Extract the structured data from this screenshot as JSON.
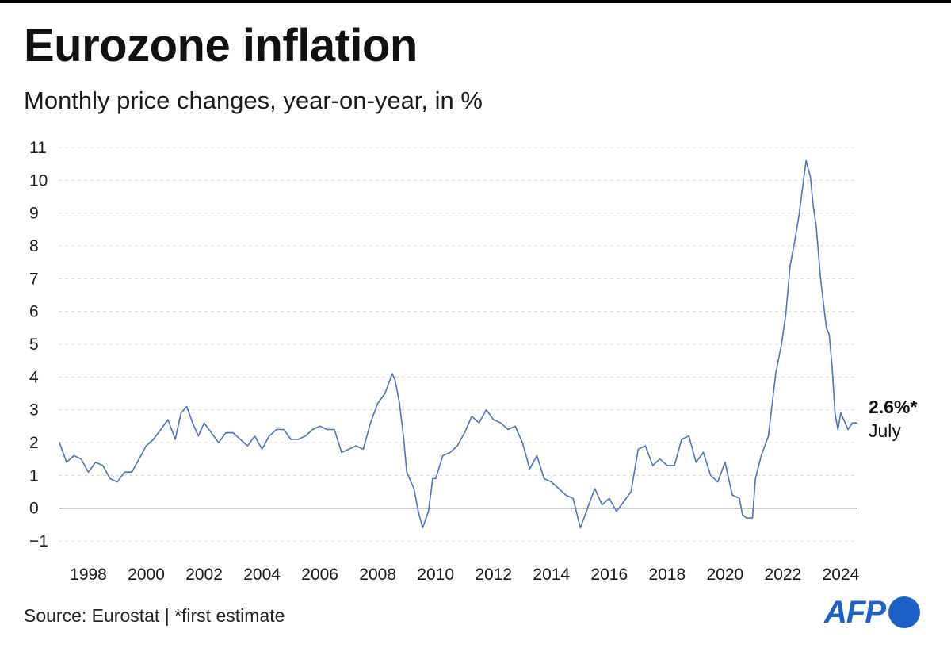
{
  "chart_data": {
    "type": "line",
    "title": "Eurozone inflation",
    "subtitle": "Monthly price changes, year-on-year, in %",
    "xlabel": "",
    "ylabel": "",
    "ylim": [
      -1,
      11
    ],
    "xlim": [
      1997.0,
      2024.55
    ],
    "yticks": [
      -1,
      0,
      1,
      2,
      3,
      4,
      5,
      6,
      7,
      8,
      9,
      10,
      11
    ],
    "ytick_labels": [
      "−1",
      "0",
      "1",
      "2",
      "3",
      "4",
      "5",
      "6",
      "7",
      "8",
      "9",
      "10",
      "11"
    ],
    "xticks": [
      1998,
      2000,
      2002,
      2004,
      2006,
      2008,
      2010,
      2012,
      2014,
      2016,
      2018,
      2020,
      2022,
      2024
    ],
    "xtick_labels": [
      "1998",
      "2000",
      "2002",
      "2004",
      "2006",
      "2008",
      "2010",
      "2012",
      "2014",
      "2016",
      "2018",
      "2020",
      "2022",
      "2024"
    ],
    "grid": "horizontal dashed",
    "line_color": "#4a72c8",
    "series": [
      {
        "points": [
          [
            1997.0,
            2.0
          ],
          [
            1997.25,
            1.4
          ],
          [
            1997.5,
            1.6
          ],
          [
            1997.75,
            1.5
          ],
          [
            1998.0,
            1.1
          ],
          [
            1998.25,
            1.4
          ],
          [
            1998.5,
            1.3
          ],
          [
            1998.75,
            0.9
          ],
          [
            1999.0,
            0.8
          ],
          [
            1999.25,
            1.1
          ],
          [
            1999.5,
            1.1
          ],
          [
            1999.75,
            1.5
          ],
          [
            2000.0,
            1.9
          ],
          [
            2000.25,
            2.1
          ],
          [
            2000.5,
            2.4
          ],
          [
            2000.75,
            2.7
          ],
          [
            2001.0,
            2.1
          ],
          [
            2001.2,
            2.9
          ],
          [
            2001.4,
            3.1
          ],
          [
            2001.6,
            2.6
          ],
          [
            2001.8,
            2.2
          ],
          [
            2002.0,
            2.6
          ],
          [
            2002.25,
            2.3
          ],
          [
            2002.5,
            2.0
          ],
          [
            2002.75,
            2.3
          ],
          [
            2003.0,
            2.3
          ],
          [
            2003.25,
            2.1
          ],
          [
            2003.5,
            1.9
          ],
          [
            2003.75,
            2.2
          ],
          [
            2004.0,
            1.8
          ],
          [
            2004.25,
            2.2
          ],
          [
            2004.5,
            2.4
          ],
          [
            2004.75,
            2.4
          ],
          [
            2005.0,
            2.1
          ],
          [
            2005.25,
            2.1
          ],
          [
            2005.5,
            2.2
          ],
          [
            2005.75,
            2.4
          ],
          [
            2006.0,
            2.5
          ],
          [
            2006.25,
            2.4
          ],
          [
            2006.5,
            2.4
          ],
          [
            2006.75,
            1.7
          ],
          [
            2007.0,
            1.8
          ],
          [
            2007.25,
            1.9
          ],
          [
            2007.5,
            1.8
          ],
          [
            2007.75,
            2.6
          ],
          [
            2008.0,
            3.2
          ],
          [
            2008.25,
            3.5
          ],
          [
            2008.5,
            4.1
          ],
          [
            2008.6,
            3.9
          ],
          [
            2008.75,
            3.2
          ],
          [
            2008.9,
            2.1
          ],
          [
            2009.0,
            1.1
          ],
          [
            2009.25,
            0.6
          ],
          [
            2009.4,
            -0.1
          ],
          [
            2009.55,
            -0.6
          ],
          [
            2009.75,
            -0.1
          ],
          [
            2009.9,
            0.9
          ],
          [
            2010.0,
            0.9
          ],
          [
            2010.25,
            1.6
          ],
          [
            2010.5,
            1.7
          ],
          [
            2010.75,
            1.9
          ],
          [
            2011.0,
            2.3
          ],
          [
            2011.25,
            2.8
          ],
          [
            2011.5,
            2.6
          ],
          [
            2011.75,
            3.0
          ],
          [
            2012.0,
            2.7
          ],
          [
            2012.25,
            2.6
          ],
          [
            2012.5,
            2.4
          ],
          [
            2012.75,
            2.5
          ],
          [
            2013.0,
            2.0
          ],
          [
            2013.25,
            1.2
          ],
          [
            2013.5,
            1.6
          ],
          [
            2013.75,
            0.9
          ],
          [
            2014.0,
            0.8
          ],
          [
            2014.25,
            0.6
          ],
          [
            2014.5,
            0.4
          ],
          [
            2014.75,
            0.3
          ],
          [
            2015.0,
            -0.6
          ],
          [
            2015.25,
            0.0
          ],
          [
            2015.5,
            0.6
          ],
          [
            2015.75,
            0.1
          ],
          [
            2016.0,
            0.3
          ],
          [
            2016.25,
            -0.1
          ],
          [
            2016.5,
            0.2
          ],
          [
            2016.75,
            0.5
          ],
          [
            2017.0,
            1.8
          ],
          [
            2017.25,
            1.9
          ],
          [
            2017.5,
            1.3
          ],
          [
            2017.75,
            1.5
          ],
          [
            2018.0,
            1.3
          ],
          [
            2018.25,
            1.3
          ],
          [
            2018.5,
            2.1
          ],
          [
            2018.75,
            2.2
          ],
          [
            2019.0,
            1.4
          ],
          [
            2019.25,
            1.7
          ],
          [
            2019.5,
            1.0
          ],
          [
            2019.75,
            0.8
          ],
          [
            2020.0,
            1.4
          ],
          [
            2020.25,
            0.4
          ],
          [
            2020.5,
            0.3
          ],
          [
            2020.6,
            -0.2
          ],
          [
            2020.75,
            -0.3
          ],
          [
            2020.95,
            -0.3
          ],
          [
            2021.05,
            0.9
          ],
          [
            2021.25,
            1.6
          ],
          [
            2021.5,
            2.2
          ],
          [
            2021.75,
            4.1
          ],
          [
            2021.95,
            5.0
          ],
          [
            2022.1,
            5.9
          ],
          [
            2022.25,
            7.4
          ],
          [
            2022.4,
            8.1
          ],
          [
            2022.55,
            8.9
          ],
          [
            2022.7,
            9.9
          ],
          [
            2022.8,
            10.6
          ],
          [
            2022.95,
            10.1
          ],
          [
            2023.05,
            9.2
          ],
          [
            2023.15,
            8.6
          ],
          [
            2023.3,
            7.0
          ],
          [
            2023.5,
            5.5
          ],
          [
            2023.6,
            5.3
          ],
          [
            2023.7,
            4.3
          ],
          [
            2023.8,
            2.9
          ],
          [
            2023.9,
            2.4
          ],
          [
            2024.0,
            2.9
          ],
          [
            2024.15,
            2.6
          ],
          [
            2024.25,
            2.4
          ],
          [
            2024.4,
            2.6
          ],
          [
            2024.55,
            2.6
          ]
        ]
      }
    ],
    "annotation": {
      "value_label": "2.6%*",
      "period_label": "July"
    },
    "source": "Source: Eurostat | *first estimate"
  },
  "branding": {
    "logo_text": "AFP",
    "logo_color": "#1d61c8"
  }
}
